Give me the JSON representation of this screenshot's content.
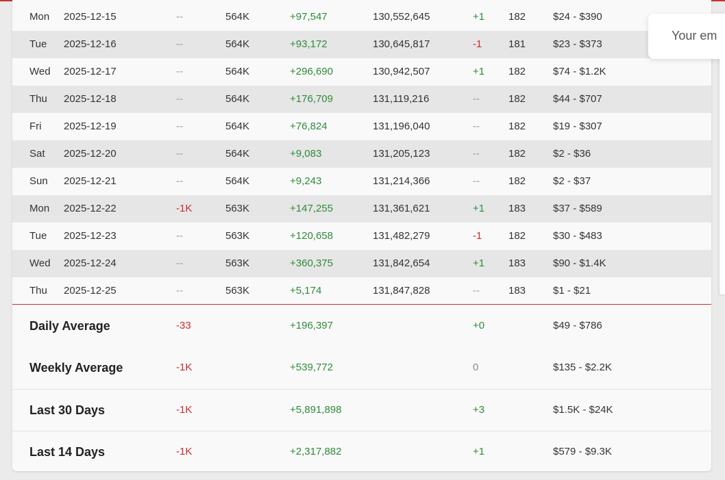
{
  "daily_rows": [
    {
      "day": "Mon",
      "date": "2025-12-15",
      "subs_delta": "--",
      "subs": "564K",
      "views_delta": "+97,547",
      "views": "130,552,645",
      "videos_delta": "+1",
      "videos": "182",
      "earnings": "$24 - $390"
    },
    {
      "day": "Tue",
      "date": "2025-12-16",
      "subs_delta": "--",
      "subs": "564K",
      "views_delta": "+93,172",
      "views": "130,645,817",
      "videos_delta": "-1",
      "videos": "181",
      "earnings": "$23 - $373"
    },
    {
      "day": "Wed",
      "date": "2025-12-17",
      "subs_delta": "--",
      "subs": "564K",
      "views_delta": "+296,690",
      "views": "130,942,507",
      "videos_delta": "+1",
      "videos": "182",
      "earnings": "$74 - $1.2K"
    },
    {
      "day": "Thu",
      "date": "2025-12-18",
      "subs_delta": "--",
      "subs": "564K",
      "views_delta": "+176,709",
      "views": "131,119,216",
      "videos_delta": "--",
      "videos": "182",
      "earnings": "$44 - $707"
    },
    {
      "day": "Fri",
      "date": "2025-12-19",
      "subs_delta": "--",
      "subs": "564K",
      "views_delta": "+76,824",
      "views": "131,196,040",
      "videos_delta": "--",
      "videos": "182",
      "earnings": "$19 - $307"
    },
    {
      "day": "Sat",
      "date": "2025-12-20",
      "subs_delta": "--",
      "subs": "564K",
      "views_delta": "+9,083",
      "views": "131,205,123",
      "videos_delta": "--",
      "videos": "182",
      "earnings": "$2 - $36"
    },
    {
      "day": "Sun",
      "date": "2025-12-21",
      "subs_delta": "--",
      "subs": "564K",
      "views_delta": "+9,243",
      "views": "131,214,366",
      "videos_delta": "--",
      "videos": "182",
      "earnings": "$2 - $37"
    },
    {
      "day": "Mon",
      "date": "2025-12-22",
      "subs_delta": "-1K",
      "subs": "563K",
      "views_delta": "+147,255",
      "views": "131,361,621",
      "videos_delta": "+1",
      "videos": "183",
      "earnings": "$37 - $589"
    },
    {
      "day": "Tue",
      "date": "2025-12-23",
      "subs_delta": "--",
      "subs": "563K",
      "views_delta": "+120,658",
      "views": "131,482,279",
      "videos_delta": "-1",
      "videos": "182",
      "earnings": "$30 - $483"
    },
    {
      "day": "Wed",
      "date": "2025-12-24",
      "subs_delta": "--",
      "subs": "563K",
      "views_delta": "+360,375",
      "views": "131,842,654",
      "videos_delta": "+1",
      "videos": "183",
      "earnings": "$90 - $1.4K"
    },
    {
      "day": "Thu",
      "date": "2025-12-25",
      "subs_delta": "--",
      "subs": "563K",
      "views_delta": "+5,174",
      "views": "131,847,828",
      "videos_delta": "--",
      "videos": "183",
      "earnings": "$1 - $21"
    }
  ],
  "summary_rows": [
    {
      "label": "Daily Average",
      "subs_delta": "-33",
      "views_delta": "+196,397",
      "videos_delta": "+0",
      "earnings": "$49 - $786"
    },
    {
      "label": "Weekly Average",
      "subs_delta": "-1K",
      "views_delta": "+539,772",
      "videos_delta": "0",
      "earnings": "$135 - $2.2K"
    },
    {
      "label": "Last 30 Days",
      "subs_delta": "-1K",
      "views_delta": "+5,891,898",
      "videos_delta": "+3",
      "earnings": "$1.5K - $24K"
    },
    {
      "label": "Last 14 Days",
      "subs_delta": "-1K",
      "views_delta": "+2,317,882",
      "videos_delta": "+1",
      "earnings": "$579 - $9.3K"
    }
  ],
  "popup": {
    "email_placeholder": "Your em"
  },
  "colors": {
    "accent": "#c9302c",
    "positive": "#2e8b3a",
    "negative": "#cc2b2b"
  }
}
